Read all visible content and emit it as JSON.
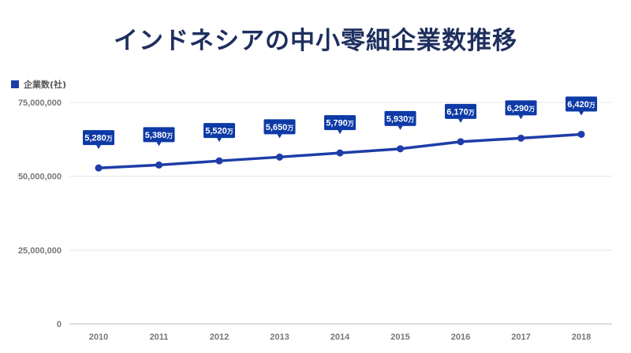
{
  "chart_data": {
    "type": "line",
    "title": "インドネシアの中小零細企業数推移",
    "legend": "企業数(社)",
    "legend_position": "top-left",
    "x": [
      "2010",
      "2011",
      "2012",
      "2013",
      "2014",
      "2015",
      "2016",
      "2017",
      "2018"
    ],
    "series": [
      {
        "name": "企業数(社)",
        "values": [
          52800000,
          53800000,
          55200000,
          56500000,
          57900000,
          59300000,
          61700000,
          62900000,
          64200000
        ],
        "labels": [
          "5,280",
          "5,380",
          "5,520",
          "5,650",
          "5,790",
          "5,930",
          "6,170",
          "6,290",
          "6,420"
        ]
      }
    ],
    "label_unit": "万",
    "yticks": [
      "0",
      "25,000,000",
      "50,000,000",
      "75,000,000"
    ],
    "ytick_values": [
      0,
      25000000,
      50000000,
      75000000
    ],
    "ylim": [
      0,
      75000000
    ],
    "grid": true,
    "colors": {
      "line": "#1e3da8",
      "label_bg": "#0d3aa6",
      "title": "#1e2f5e"
    }
  }
}
